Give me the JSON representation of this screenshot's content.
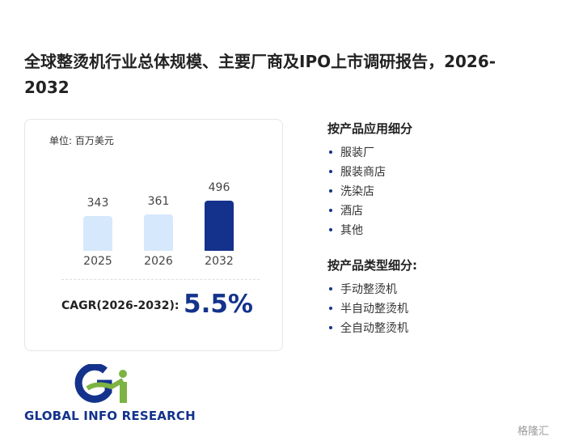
{
  "title": "全球整烫机行业总体规模、主要厂商及IPO上市调研报告，2026-2032",
  "chart_data": {
    "type": "bar",
    "unit": "单位: 百万美元",
    "categories": [
      "2025",
      "2026",
      "2032"
    ],
    "values": [
      343,
      361,
      496
    ],
    "colors": [
      "#d6e8fb",
      "#d6e8fb",
      "#14328c"
    ],
    "cagr_label": "CAGR(2026-2032):",
    "cagr_value": "5.5%"
  },
  "segments": [
    {
      "heading": "按产品应用细分",
      "items": [
        "服装厂",
        "服装商店",
        "洗染店",
        "酒店",
        "其他"
      ]
    },
    {
      "heading": "按产品类型细分:",
      "items": [
        "手动整烫机",
        "半自动整烫机",
        "全自动整烫机"
      ]
    }
  ],
  "logo_text": "GLOBAL INFO RESEARCH",
  "footer_brand": "格隆汇"
}
